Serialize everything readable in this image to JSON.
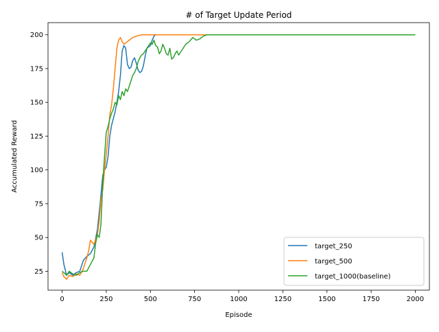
{
  "chart_data": {
    "type": "line",
    "title": "# of Target Update Period",
    "xlabel": "Episode",
    "ylabel": "Accumulated Reward",
    "xlim": [
      -80,
      2080
    ],
    "ylim": [
      11,
      209
    ],
    "xticks": [
      0,
      250,
      500,
      750,
      1000,
      1250,
      1500,
      1750,
      2000
    ],
    "yticks": [
      25,
      50,
      75,
      100,
      125,
      150,
      175,
      200
    ],
    "xtick_labels": [
      "0",
      "250",
      "500",
      "750",
      "1000",
      "1250",
      "1500",
      "1750",
      "2000"
    ],
    "ytick_labels": [
      "25",
      "50",
      "75",
      "100",
      "125",
      "150",
      "175",
      "200"
    ],
    "grid": false,
    "legend_position": "lower right",
    "series": [
      {
        "name": "target_250",
        "color": "#1f77b4",
        "x": [
          0,
          10,
          25,
          40,
          60,
          80,
          100,
          120,
          140,
          160,
          180,
          200,
          215,
          230,
          240,
          250,
          260,
          270,
          280,
          290,
          300,
          310,
          320,
          330,
          340,
          350,
          360,
          370,
          380,
          390,
          400,
          410,
          420,
          430,
          440,
          450,
          460,
          470,
          480,
          490,
          500,
          510,
          520,
          530,
          540,
          560,
          600,
          700,
          800,
          1000,
          1500,
          2000
        ],
        "y": [
          39,
          30,
          22,
          24,
          22,
          24,
          25,
          33,
          36,
          38,
          43,
          56,
          75,
          96,
          100,
          102,
          110,
          125,
          133,
          138,
          143,
          150,
          158,
          170,
          188,
          192,
          190,
          178,
          175,
          176,
          181,
          183,
          179,
          174,
          172,
          173,
          177,
          184,
          190,
          191,
          192,
          196,
          199,
          200,
          200,
          200,
          200,
          200,
          200,
          200,
          200,
          200
        ]
      },
      {
        "name": "target_500",
        "color": "#ff7f0e",
        "x": [
          0,
          10,
          25,
          40,
          60,
          80,
          100,
          120,
          140,
          150,
          160,
          180,
          200,
          210,
          220,
          230,
          240,
          250,
          260,
          270,
          280,
          290,
          300,
          310,
          320,
          330,
          340,
          350,
          360,
          380,
          400,
          420,
          450,
          500,
          600,
          800,
          1000,
          1500,
          2000
        ],
        "y": [
          24,
          21,
          19,
          22,
          21,
          23,
          22,
          27,
          35,
          40,
          48,
          45,
          52,
          62,
          78,
          85,
          100,
          112,
          125,
          141,
          148,
          160,
          175,
          190,
          196,
          198,
          195,
          193,
          194,
          196,
          198,
          199,
          200,
          200,
          200,
          200,
          200,
          200,
          200
        ]
      },
      {
        "name": "target_1000(baseline)",
        "color": "#2ca02c",
        "x": [
          0,
          10,
          25,
          40,
          60,
          80,
          100,
          120,
          140,
          160,
          180,
          190,
          200,
          210,
          220,
          230,
          240,
          250,
          260,
          270,
          280,
          290,
          300,
          310,
          320,
          330,
          340,
          350,
          360,
          370,
          380,
          390,
          400,
          410,
          420,
          430,
          440,
          450,
          460,
          470,
          480,
          490,
          500,
          510,
          520,
          530,
          540,
          550,
          560,
          570,
          580,
          590,
          600,
          610,
          620,
          630,
          640,
          650,
          660,
          680,
          700,
          720,
          740,
          760,
          780,
          800,
          820,
          1000,
          1500,
          2000
        ],
        "y": [
          25,
          24,
          22,
          25,
          23,
          22,
          24,
          25,
          25,
          30,
          35,
          46,
          52,
          50,
          60,
          90,
          110,
          128,
          132,
          138,
          142,
          145,
          150,
          148,
          155,
          152,
          158,
          155,
          160,
          158,
          162,
          166,
          170,
          172,
          175,
          180,
          183,
          185,
          186,
          188,
          190,
          192,
          194,
          193,
          196,
          192,
          191,
          186,
          188,
          193,
          190,
          186,
          185,
          190,
          182,
          183,
          186,
          188,
          185,
          189,
          193,
          195,
          198,
          196,
          197,
          199,
          200,
          200,
          200,
          200
        ]
      }
    ]
  }
}
